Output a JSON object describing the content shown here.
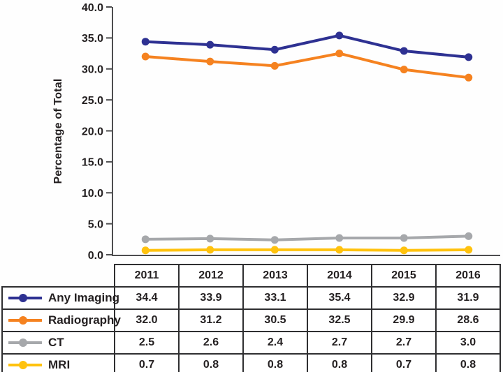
{
  "figure": {
    "background": "#fefefe",
    "axis_color": "#4d4d4f",
    "text_color": "#231f20",
    "table_border_color": "#2f2f31"
  },
  "chart_data": {
    "type": "line",
    "title": "",
    "xlabel": "",
    "ylabel": "Percentage of Total",
    "categories": [
      "2011",
      "2012",
      "2013",
      "2014",
      "2015",
      "2016"
    ],
    "ylim": [
      0,
      40
    ],
    "ytick_step": 5,
    "ytick_labels": [
      "0.0",
      "5.0",
      "10.0",
      "15.0",
      "20.0",
      "25.0",
      "30.0",
      "35.0",
      "40.0"
    ],
    "grid": false,
    "legend_position": "table-left-column",
    "value_format": "one_decimal",
    "series": [
      {
        "name": "Any Imaging",
        "color": "#2e3192",
        "values": [
          34.4,
          33.9,
          33.1,
          35.4,
          32.9,
          31.9
        ]
      },
      {
        "name": "Radiography",
        "color": "#f58220",
        "values": [
          32.0,
          31.2,
          30.5,
          32.5,
          29.9,
          28.6
        ]
      },
      {
        "name": "CT",
        "color": "#a6a8ab",
        "values": [
          2.5,
          2.6,
          2.4,
          2.7,
          2.7,
          3.0
        ]
      },
      {
        "name": "MRI",
        "color": "#ffc20e",
        "values": [
          0.7,
          0.8,
          0.8,
          0.8,
          0.7,
          0.8
        ]
      }
    ]
  }
}
